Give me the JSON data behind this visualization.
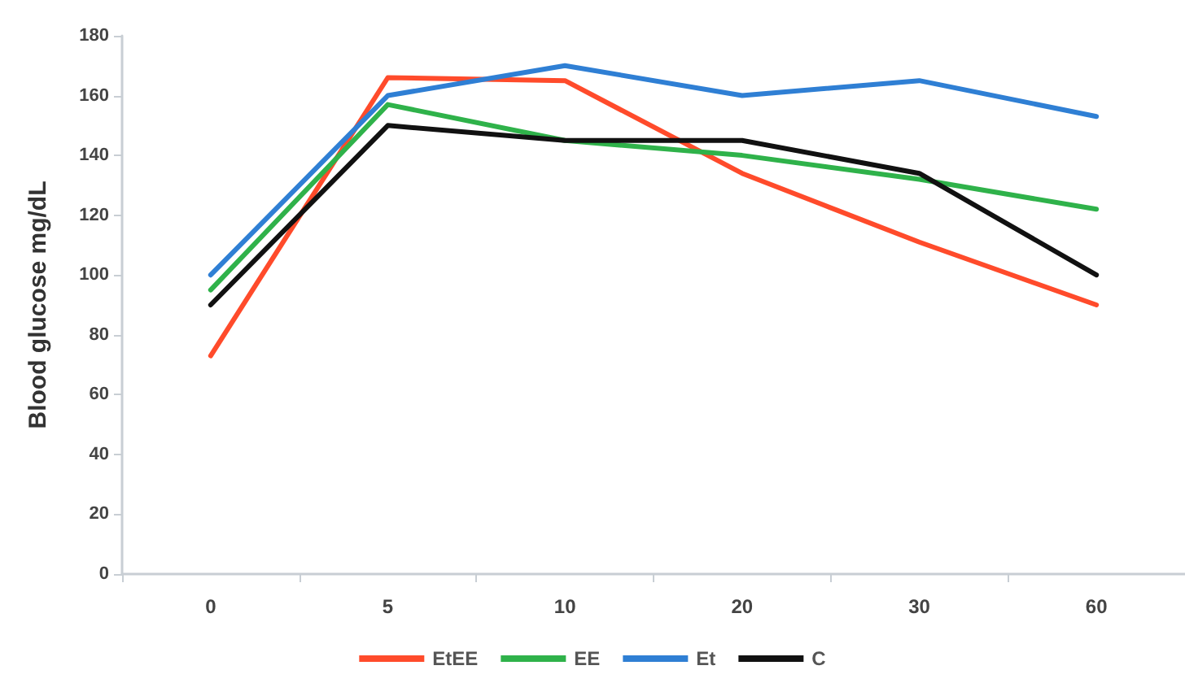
{
  "chart_data": {
    "type": "line",
    "ylabel": "Blood glucose mg/dL",
    "categories": [
      "0",
      "5",
      "10",
      "20",
      "30",
      "60"
    ],
    "series": [
      {
        "name": "EtEE",
        "color": "#ff4b2b",
        "values": [
          73,
          166,
          165,
          134,
          111,
          90
        ]
      },
      {
        "name": "EE",
        "color": "#2fb24a",
        "values": [
          95,
          157,
          145,
          140,
          132,
          122
        ]
      },
      {
        "name": "Et",
        "color": "#2f7fd4",
        "values": [
          100,
          160,
          170,
          160,
          165,
          153
        ]
      },
      {
        "name": "C",
        "color": "#111111",
        "values": [
          90,
          150,
          145,
          145,
          134,
          100
        ]
      }
    ],
    "ylim": [
      0,
      180
    ],
    "yticks": [
      0,
      20,
      40,
      60,
      80,
      100,
      120,
      140,
      160,
      180
    ],
    "grid": false,
    "legend": "bottom",
    "marker": "none",
    "line_style": "solid"
  }
}
